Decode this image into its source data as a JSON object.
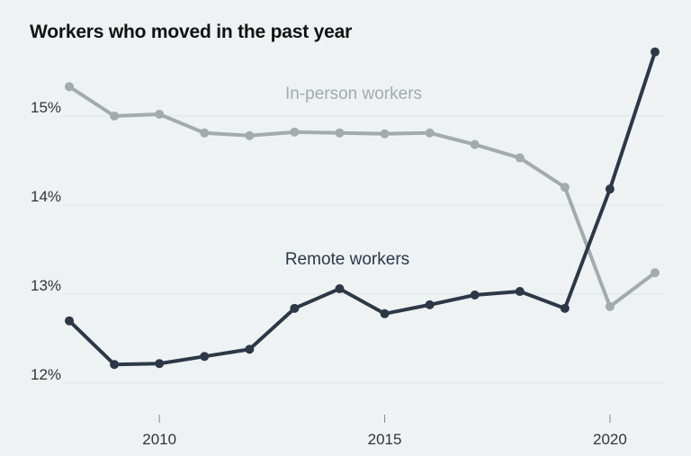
{
  "chart_data": {
    "type": "line",
    "title": "Workers who moved in the past year",
    "xlabel": "",
    "ylabel": "",
    "x": [
      2008,
      2009,
      2010,
      2011,
      2012,
      2013,
      2014,
      2015,
      2016,
      2017,
      2018,
      2019,
      2020,
      2021
    ],
    "xticks": [
      2010,
      2015,
      2020
    ],
    "xtick_labels": [
      "2010",
      "2015",
      "2020"
    ],
    "yticks": [
      12,
      13,
      14,
      15
    ],
    "ytick_labels": [
      "12%",
      "13%",
      "14%",
      "15%"
    ],
    "ylim": [
      11.7,
      15.9
    ],
    "xlim": [
      2008,
      2021
    ],
    "grid": "horizontal",
    "series": [
      {
        "name": "In-person workers",
        "color": "#a3abad",
        "values": [
          15.33,
          15.0,
          15.02,
          14.81,
          14.78,
          14.82,
          14.81,
          14.8,
          14.81,
          14.68,
          14.53,
          14.2,
          12.86,
          13.24
        ]
      },
      {
        "name": "Remote workers",
        "color": "#2d3847",
        "values": [
          12.7,
          12.21,
          12.22,
          12.3,
          12.38,
          12.84,
          13.06,
          12.78,
          12.88,
          12.99,
          13.03,
          12.84,
          14.18,
          15.72
        ]
      }
    ]
  }
}
